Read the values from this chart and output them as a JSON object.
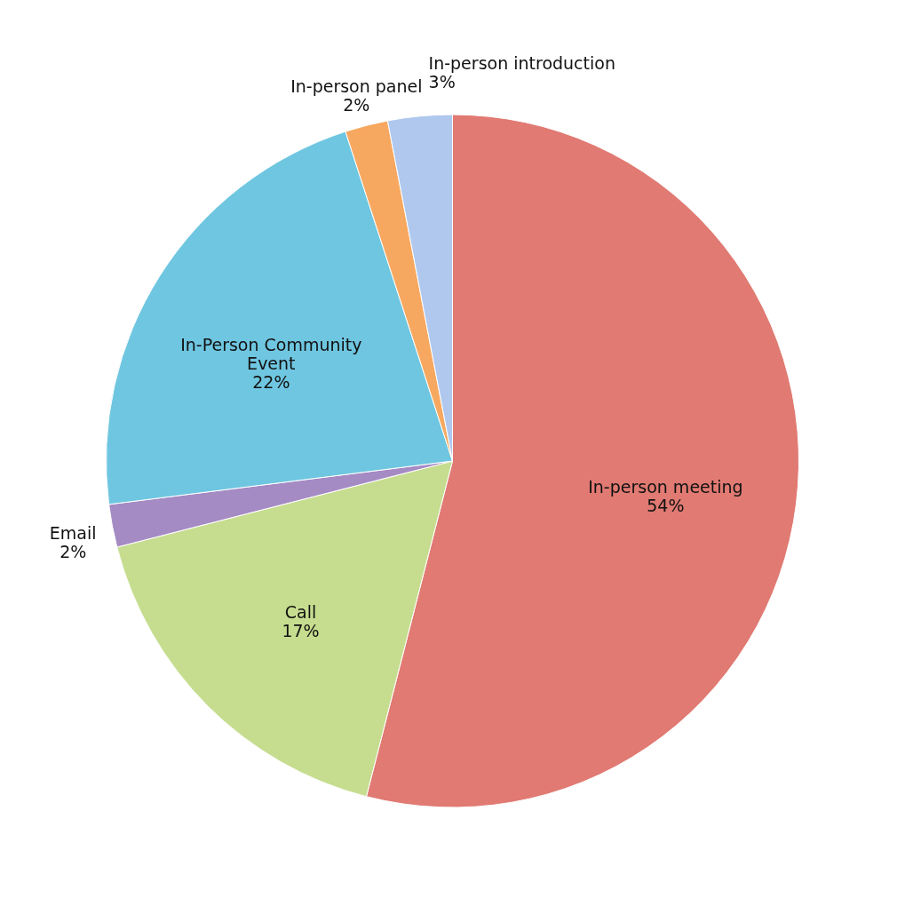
{
  "chart_data": {
    "type": "pie",
    "categories": [
      "In-person meeting",
      "Call",
      "Email",
      "In-Person Community Event",
      "In-person panel",
      "In-person introduction"
    ],
    "values": [
      54,
      17,
      2,
      22,
      2,
      3
    ],
    "value_labels": [
      "54%",
      "17%",
      "2%",
      "22%",
      "2%",
      "3%"
    ],
    "colors": [
      "#e07a72",
      "#c6dd8f",
      "#a58bc4",
      "#6fc6e0",
      "#f7a860",
      "#b0c8ee"
    ]
  }
}
